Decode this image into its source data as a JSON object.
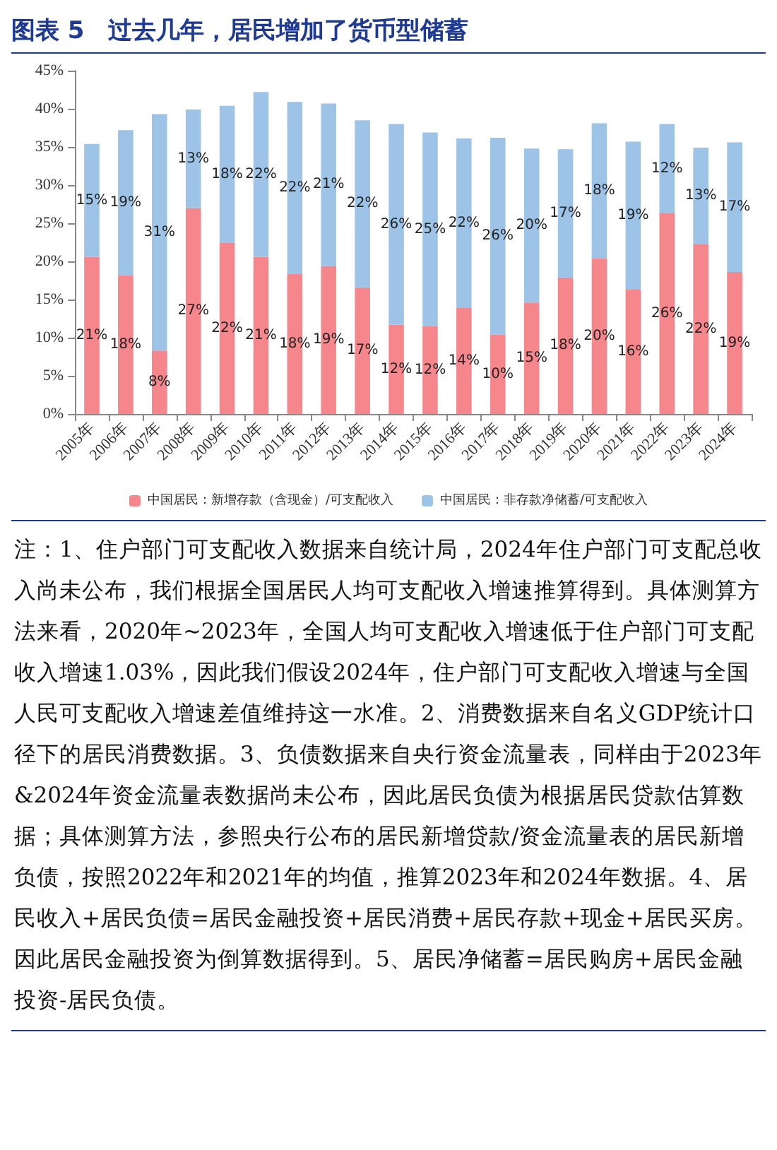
{
  "chart_data": {
    "type": "bar",
    "title": "图表 5　过去几年，居民增加了货币型储蓄",
    "categories": [
      "2005年",
      "2006年",
      "2007年",
      "2008年",
      "2009年",
      "2010年",
      "2011年",
      "2012年",
      "2013年",
      "2014年",
      "2015年",
      "2016年",
      "2017年",
      "2018年",
      "2019年",
      "2020年",
      "2021年",
      "2022年",
      "2023年",
      "2024年"
    ],
    "stacked": true,
    "series": [
      {
        "name": "中国居民：新增存款（含现金）/可支配收入",
        "color": "#f4868c",
        "values": [
          20.6,
          18.2,
          8.3,
          27.0,
          22.4,
          20.6,
          18.4,
          19.4,
          16.6,
          11.7,
          11.5,
          13.9,
          10.4,
          14.6,
          17.9,
          20.4,
          16.3,
          26.3,
          22.3,
          18.6
        ],
        "value_labels": [
          "21%",
          "18%",
          "8%",
          "27%",
          "22%",
          "21%",
          "18%",
          "19%",
          "17%",
          "12%",
          "12%",
          "14%",
          "10%",
          "15%",
          "18%",
          "20%",
          "16%",
          "26%",
          "22%",
          "19%"
        ]
      },
      {
        "name": "中国居民：非存款净储蓄/可支配收入",
        "color": "#9dc3e6",
        "values": [
          14.8,
          19.0,
          31.0,
          12.9,
          18.0,
          21.6,
          22.5,
          21.3,
          21.9,
          26.3,
          25.4,
          22.2,
          25.8,
          20.2,
          16.8,
          17.7,
          19.4,
          11.7,
          12.6,
          17.0
        ],
        "value_labels": [
          "15%",
          "19%",
          "31%",
          "13%",
          "18%",
          "22%",
          "22%",
          "21%",
          "22%",
          "26%",
          "25%",
          "22%",
          "26%",
          "20%",
          "17%",
          "18%",
          "19%",
          "12%",
          "13%",
          "17%"
        ]
      }
    ],
    "ylim": [
      0,
      45
    ],
    "yticks": [
      {
        "value": 0,
        "label": "0%"
      },
      {
        "value": 5,
        "label": "5%"
      },
      {
        "value": 10,
        "label": "10%"
      },
      {
        "value": 15,
        "label": "15%"
      },
      {
        "value": 20,
        "label": "20%"
      },
      {
        "value": 25,
        "label": "25%"
      },
      {
        "value": 30,
        "label": "30%"
      },
      {
        "value": 35,
        "label": "35%"
      },
      {
        "value": 40,
        "label": "40%"
      },
      {
        "value": 45,
        "label": "45%"
      }
    ],
    "grid": false,
    "legend": "bottom",
    "annotations": [
      "注：1、住户部门可支配收入数据来自统计局，2024年住户部门可支配总收入尚未公布，我们根据全国居民人均可支配收入增速推算得到。具体测算方法来看，2020年~2023年，全国人均可支配收入增速低于住户部门可支配收入增速1.03%，因此我们假设2024年，住户部门可支配收入增速与全国人民可支配收入增速差值维持这一水准。2、消费数据来自名义GDP统计口径下的居民消费数据。3、负债数据来自央行资金流量表，同样由于2023年&2024年资金流量表数据尚未公布，因此居民负债为根据居民贷款估算数据；具体测算方法，参照央行公布的居民新增贷款/资金流量表的居民新增负债，按照2022年和2021年的均值，推算2023年和2024年数据。4、居民收入+居民负债=居民金融投资+居民消费+居民存款+现金+居民买房。因此居民金融投资为倒算数据得到。5、居民净储蓄=居民购房+居民金融投资-居民负债。"
    ]
  }
}
